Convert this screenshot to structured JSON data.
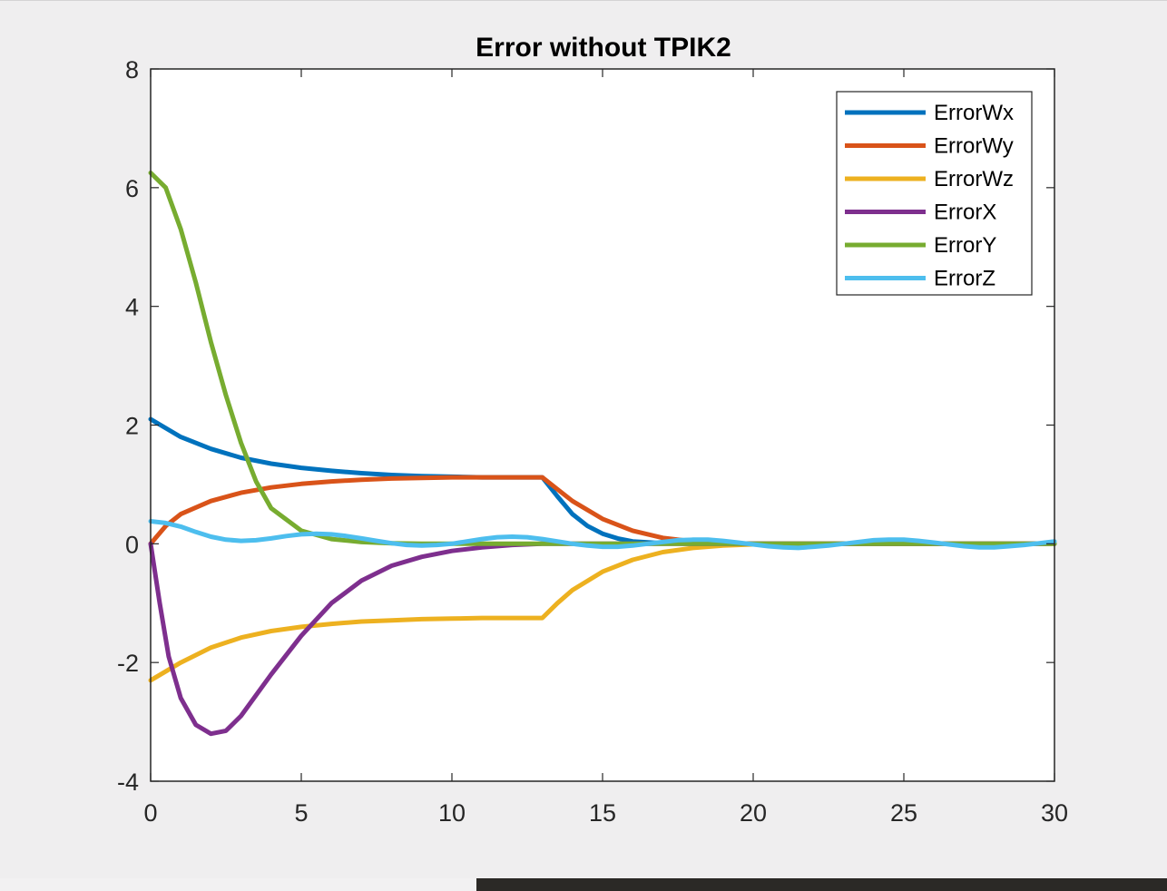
{
  "chart_data": {
    "type": "line",
    "title": "Error without TPIK2",
    "xlabel": "",
    "ylabel": "",
    "xlim": [
      0,
      30
    ],
    "ylim": [
      -4,
      8
    ],
    "xticks": [
      0,
      5,
      10,
      15,
      20,
      25,
      30
    ],
    "xtick_labels": [
      "0",
      "5",
      "10",
      "15",
      "20",
      "25",
      "30"
    ],
    "yticks": [
      -4,
      -2,
      0,
      2,
      4,
      6,
      8
    ],
    "ytick_labels": [
      "-4",
      "-2",
      "0",
      "2",
      "4",
      "6",
      "8"
    ],
    "grid": false,
    "legend_position": "top-right",
    "series": [
      {
        "name": "ErrorWx",
        "color": "#0072BD",
        "points": [
          [
            0,
            2.1
          ],
          [
            1,
            1.8
          ],
          [
            2,
            1.6
          ],
          [
            3,
            1.45
          ],
          [
            4,
            1.35
          ],
          [
            5,
            1.28
          ],
          [
            6,
            1.23
          ],
          [
            7,
            1.19
          ],
          [
            8,
            1.16
          ],
          [
            9,
            1.14
          ],
          [
            10,
            1.13
          ],
          [
            11,
            1.12
          ],
          [
            12,
            1.12
          ],
          [
            13,
            1.12
          ],
          [
            13.5,
            0.8
          ],
          [
            14,
            0.5
          ],
          [
            14.5,
            0.3
          ],
          [
            15,
            0.17
          ],
          [
            15.5,
            0.09
          ],
          [
            16,
            0.04
          ],
          [
            17,
            0.01
          ],
          [
            18,
            0.0
          ],
          [
            30,
            0.0
          ]
        ]
      },
      {
        "name": "ErrorWy",
        "color": "#D95319",
        "points": [
          [
            0,
            0.0
          ],
          [
            0.5,
            0.3
          ],
          [
            1,
            0.5
          ],
          [
            2,
            0.72
          ],
          [
            3,
            0.86
          ],
          [
            4,
            0.95
          ],
          [
            5,
            1.01
          ],
          [
            6,
            1.05
          ],
          [
            7,
            1.08
          ],
          [
            8,
            1.1
          ],
          [
            9,
            1.11
          ],
          [
            10,
            1.12
          ],
          [
            11,
            1.12
          ],
          [
            12,
            1.12
          ],
          [
            13,
            1.12
          ],
          [
            13.5,
            0.92
          ],
          [
            14,
            0.72
          ],
          [
            15,
            0.42
          ],
          [
            16,
            0.22
          ],
          [
            17,
            0.1
          ],
          [
            18,
            0.04
          ],
          [
            19,
            0.01
          ],
          [
            20,
            0.0
          ],
          [
            30,
            0.0
          ]
        ]
      },
      {
        "name": "ErrorWz",
        "color": "#EDB120",
        "points": [
          [
            0,
            -2.3
          ],
          [
            1,
            -2.0
          ],
          [
            2,
            -1.75
          ],
          [
            3,
            -1.58
          ],
          [
            4,
            -1.47
          ],
          [
            5,
            -1.4
          ],
          [
            6,
            -1.35
          ],
          [
            7,
            -1.31
          ],
          [
            8,
            -1.29
          ],
          [
            9,
            -1.27
          ],
          [
            10,
            -1.26
          ],
          [
            11,
            -1.25
          ],
          [
            12,
            -1.25
          ],
          [
            13,
            -1.25
          ],
          [
            13.5,
            -1.0
          ],
          [
            14,
            -0.78
          ],
          [
            15,
            -0.47
          ],
          [
            16,
            -0.27
          ],
          [
            17,
            -0.14
          ],
          [
            18,
            -0.07
          ],
          [
            19,
            -0.03
          ],
          [
            20,
            -0.01
          ],
          [
            21,
            0.0
          ],
          [
            30,
            0.0
          ]
        ]
      },
      {
        "name": "ErrorX",
        "color": "#7E2F8E",
        "points": [
          [
            0,
            0.0
          ],
          [
            0.3,
            -1.0
          ],
          [
            0.6,
            -1.9
          ],
          [
            1,
            -2.6
          ],
          [
            1.5,
            -3.05
          ],
          [
            2,
            -3.2
          ],
          [
            2.5,
            -3.15
          ],
          [
            3,
            -2.9
          ],
          [
            4,
            -2.2
          ],
          [
            5,
            -1.55
          ],
          [
            6,
            -1.0
          ],
          [
            7,
            -0.62
          ],
          [
            8,
            -0.37
          ],
          [
            9,
            -0.22
          ],
          [
            10,
            -0.12
          ],
          [
            11,
            -0.06
          ],
          [
            12,
            -0.02
          ],
          [
            13,
            0.0
          ],
          [
            30,
            0.0
          ]
        ]
      },
      {
        "name": "ErrorY",
        "color": "#77AC30",
        "points": [
          [
            0,
            6.25
          ],
          [
            0.5,
            6.0
          ],
          [
            1,
            5.3
          ],
          [
            1.5,
            4.4
          ],
          [
            2,
            3.4
          ],
          [
            2.5,
            2.5
          ],
          [
            3,
            1.7
          ],
          [
            3.5,
            1.05
          ],
          [
            4,
            0.6
          ],
          [
            5,
            0.22
          ],
          [
            6,
            0.08
          ],
          [
            7,
            0.03
          ],
          [
            8,
            0.01
          ],
          [
            9,
            0.0
          ],
          [
            30,
            0.0
          ]
        ]
      },
      {
        "name": "ErrorZ",
        "color": "#4DBEEE",
        "points": [
          [
            0,
            0.38
          ],
          [
            0.5,
            0.35
          ],
          [
            1,
            0.29
          ],
          [
            1.5,
            0.2
          ],
          [
            2,
            0.12
          ],
          [
            2.5,
            0.07
          ],
          [
            3,
            0.05
          ],
          [
            3.5,
            0.06
          ],
          [
            4,
            0.09
          ],
          [
            4.5,
            0.13
          ],
          [
            5,
            0.16
          ],
          [
            5.5,
            0.17
          ],
          [
            6,
            0.16
          ],
          [
            6.5,
            0.13
          ],
          [
            7,
            0.09
          ],
          [
            7.5,
            0.05
          ],
          [
            8,
            0.01
          ],
          [
            8.5,
            -0.02
          ],
          [
            9,
            -0.03
          ],
          [
            9.5,
            -0.02
          ],
          [
            10,
            0.0
          ],
          [
            10.5,
            0.04
          ],
          [
            11,
            0.08
          ],
          [
            11.5,
            0.11
          ],
          [
            12,
            0.12
          ],
          [
            12.5,
            0.11
          ],
          [
            13,
            0.08
          ],
          [
            13.5,
            0.04
          ],
          [
            14,
            0.0
          ],
          [
            14.5,
            -0.03
          ],
          [
            15,
            -0.05
          ],
          [
            15.5,
            -0.05
          ],
          [
            16,
            -0.03
          ],
          [
            16.5,
            0.0
          ],
          [
            17,
            0.03
          ],
          [
            17.5,
            0.06
          ],
          [
            18,
            0.07
          ],
          [
            18.5,
            0.07
          ],
          [
            19,
            0.05
          ],
          [
            19.5,
            0.02
          ],
          [
            20,
            -0.01
          ],
          [
            20.5,
            -0.04
          ],
          [
            21,
            -0.06
          ],
          [
            21.5,
            -0.07
          ],
          [
            22,
            -0.05
          ],
          [
            22.5,
            -0.03
          ],
          [
            23,
            0.0
          ],
          [
            23.5,
            0.03
          ],
          [
            24,
            0.06
          ],
          [
            24.5,
            0.07
          ],
          [
            25,
            0.07
          ],
          [
            25.5,
            0.05
          ],
          [
            26,
            0.02
          ],
          [
            26.5,
            -0.01
          ],
          [
            27,
            -0.04
          ],
          [
            27.5,
            -0.06
          ],
          [
            28,
            -0.06
          ],
          [
            28.5,
            -0.04
          ],
          [
            29,
            -0.02
          ],
          [
            29.5,
            0.01
          ],
          [
            30,
            0.04
          ]
        ]
      }
    ]
  }
}
